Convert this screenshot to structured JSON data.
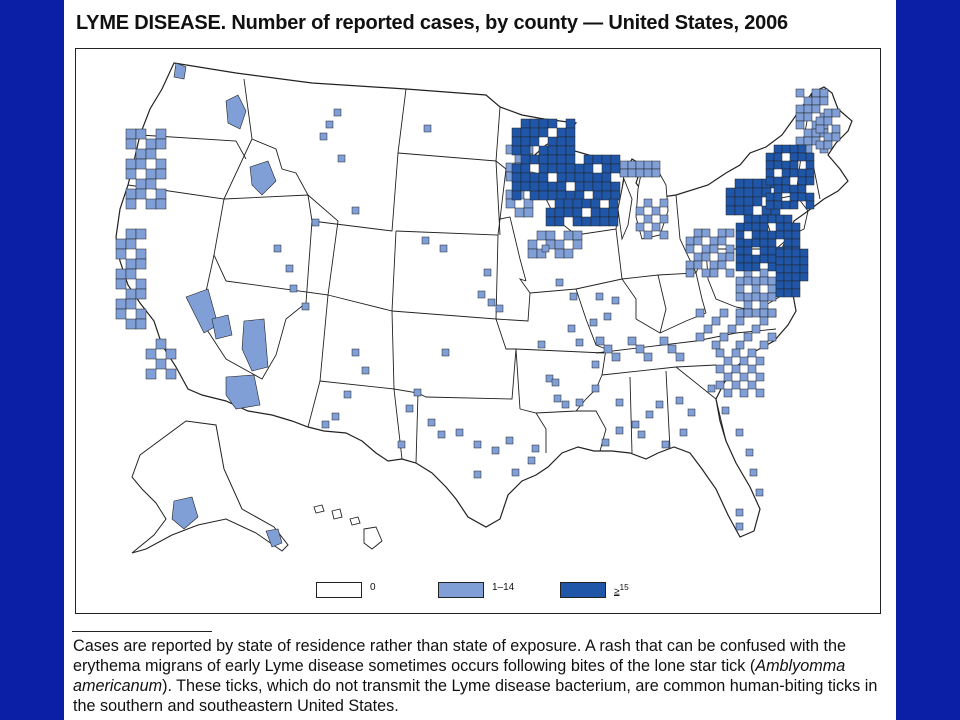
{
  "title": "LYME DISEASE. Number of reported cases, by county — United States, 2006",
  "colors": {
    "background": "#0b1ea6",
    "zero": "#ffffff",
    "low": "#7f9fd6",
    "high": "#1f56a8",
    "outline": "#222222"
  },
  "legend": [
    {
      "label": "0",
      "color": "#ffffff"
    },
    {
      "label": "1–14",
      "color": "#7f9fd6"
    },
    {
      "label": "15",
      "prefix": "≥",
      "color": "#1f56a8"
    }
  ],
  "footnote": {
    "part1": "Cases are reported by state of residence rather than state of exposure. A rash that can be confused with the erythema migrans of early Lyme disease sometimes occurs following bites of the lone star tick (",
    "species": "Amblyomma americanum",
    "part2": "). These ticks, which do not transmit the Lyme disease bacterium, are common human-biting ticks in the southern and southeastern United States."
  }
}
